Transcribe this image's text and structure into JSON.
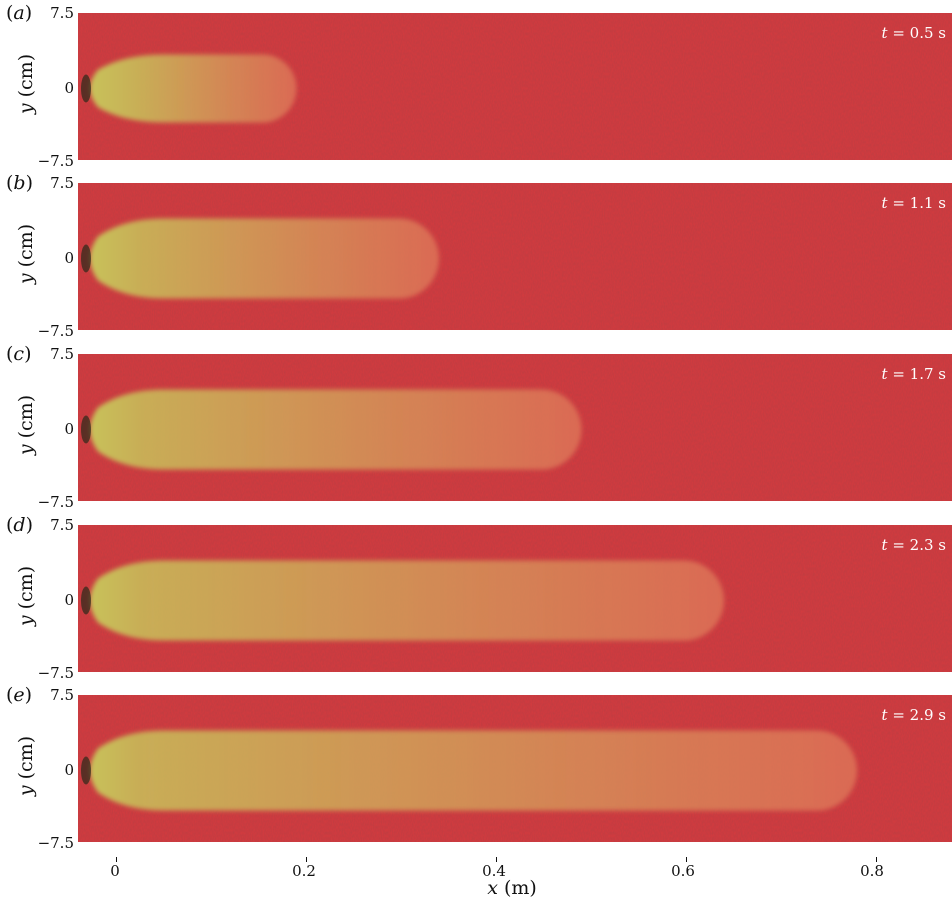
{
  "figure": {
    "panels": [
      {
        "label": "a",
        "time_var": "t",
        "time_text": " = 0.5 s",
        "front_x_m": 0.19
      },
      {
        "label": "b",
        "time_var": "t",
        "time_text": " = 1.1 s",
        "front_x_m": 0.34
      },
      {
        "label": "c",
        "time_var": "t",
        "time_text": " = 1.7 s",
        "front_x_m": 0.49
      },
      {
        "label": "d",
        "time_var": "t",
        "time_text": " = 2.3 s",
        "front_x_m": 0.64
      },
      {
        "label": "e",
        "time_var": "t",
        "time_text": " = 2.9 s",
        "front_x_m": 0.78
      }
    ],
    "y_axis": {
      "var": "y",
      "unit": " (cm)",
      "ticks": [
        "7.5",
        "0",
        "−7.5"
      ]
    },
    "x_axis": {
      "var": "x",
      "unit": " (m)",
      "ticks": [
        "0",
        "0.2",
        "0.4",
        "0.6",
        "0.8"
      ],
      "tick_values": [
        0,
        0.2,
        0.4,
        0.6,
        0.8
      ],
      "range": [
        -0.04,
        0.88
      ]
    },
    "colors": {
      "background": "#d63a3e",
      "current": "#c8c25a",
      "current_edge": "#e07a5a"
    }
  }
}
